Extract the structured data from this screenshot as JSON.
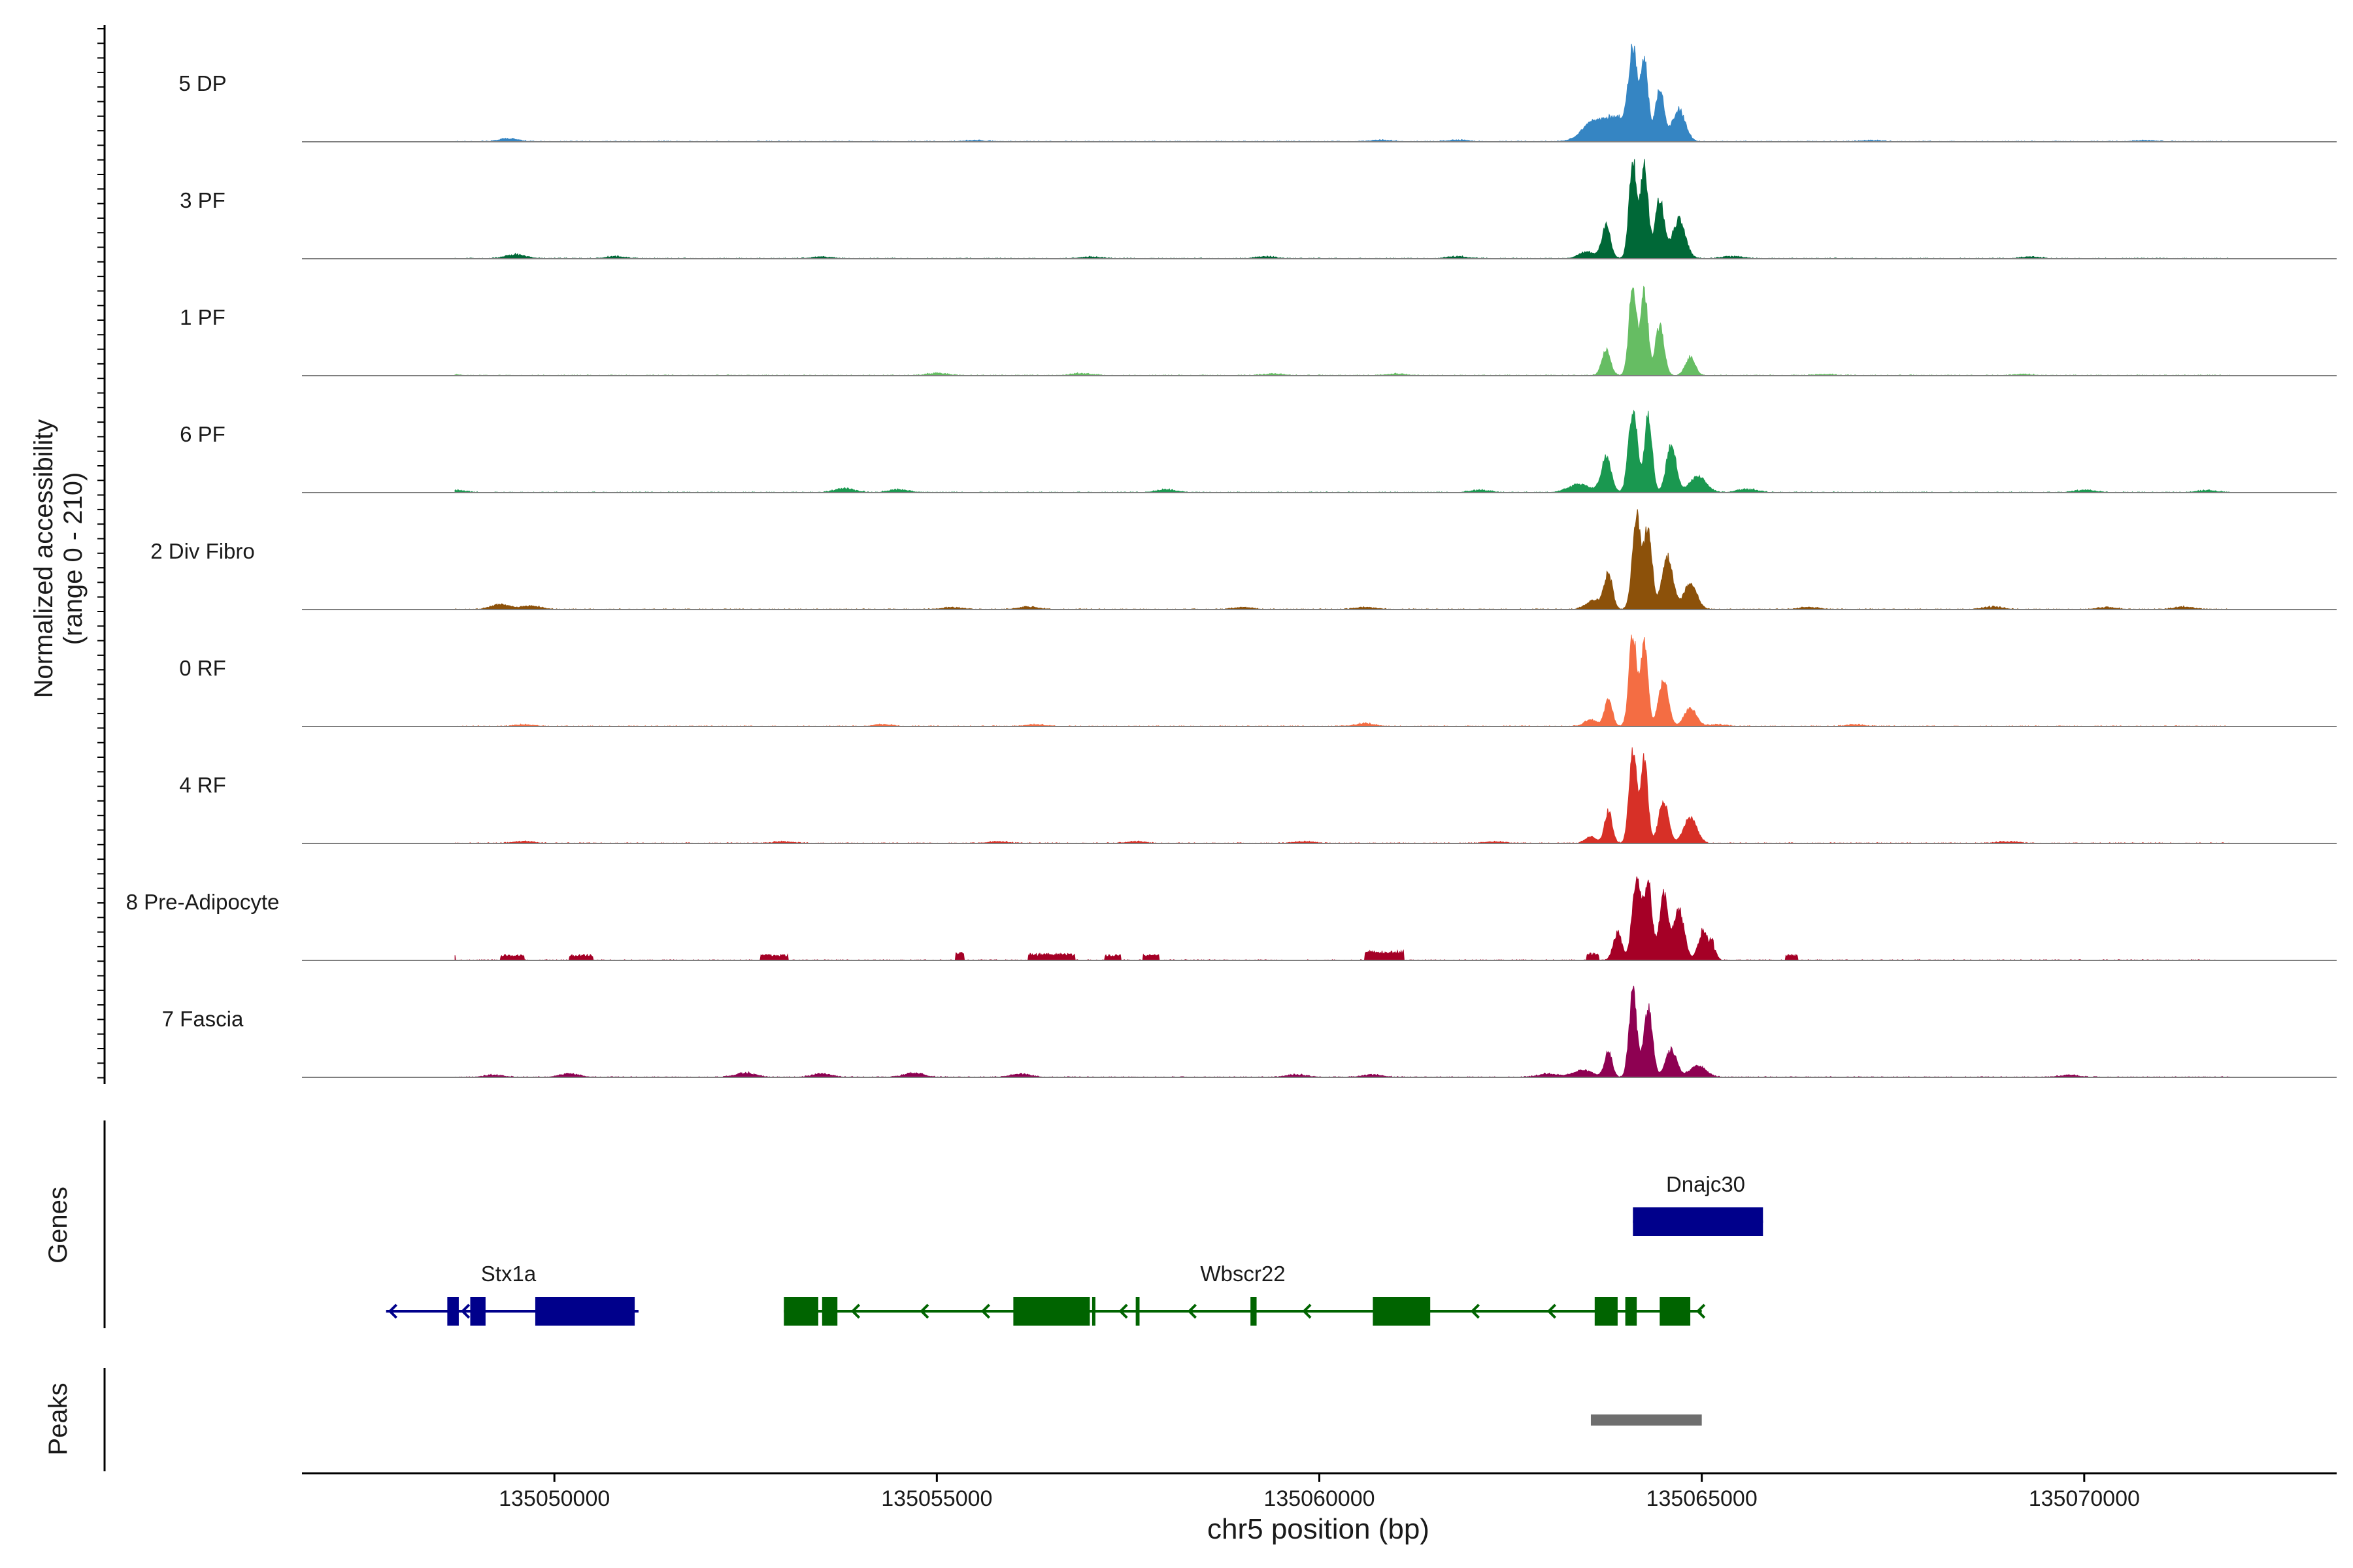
{
  "chart_data": {
    "type": "area",
    "title": "",
    "xlabel": "chr5 position (bp)",
    "ylabel_line1": "Normalized accessibility",
    "ylabel_line2": "(range 0 - 210)",
    "x_range": [
      135046700,
      135073300
    ],
    "y_range": [
      0,
      210
    ],
    "x_ticks": [
      {
        "value": 135050000,
        "label": "135050000"
      },
      {
        "value": 135055000,
        "label": "135055000"
      },
      {
        "value": 135060000,
        "label": "135060000"
      },
      {
        "value": 135065000,
        "label": "135065000"
      },
      {
        "value": 135070000,
        "label": "135070000"
      }
    ],
    "track_label_genes": "Genes",
    "track_label_peaks": "Peaks",
    "series": [
      {
        "name": "5 DP",
        "color": "#3585c3",
        "peak_max": 200,
        "background": [
          [
            135049400,
            7
          ],
          [
            135055500,
            3
          ],
          [
            135060800,
            4
          ],
          [
            135061800,
            4
          ],
          [
            135067200,
            3
          ],
          [
            135070800,
            3
          ]
        ],
        "peaks": [
          [
            135063520,
            150,
            18
          ],
          [
            135063850,
            350,
            55
          ],
          [
            135064100,
            75,
            175
          ],
          [
            135064250,
            65,
            170
          ],
          [
            135064450,
            80,
            110
          ],
          [
            135064700,
            120,
            70
          ]
        ]
      },
      {
        "name": "3 PF",
        "color": "#006837",
        "peak_max": 240,
        "background": [
          [
            135049500,
            10
          ],
          [
            135050800,
            5
          ],
          [
            135053500,
            4
          ],
          [
            135057000,
            4
          ],
          [
            135059300,
            5
          ],
          [
            135061800,
            5
          ],
          [
            135065400,
            6
          ],
          [
            135069300,
            4
          ]
        ],
        "peaks": [
          [
            135063750,
            80,
            70
          ],
          [
            135064100,
            70,
            210
          ],
          [
            135064250,
            70,
            200
          ],
          [
            135064450,
            80,
            130
          ],
          [
            135064700,
            120,
            85
          ],
          [
            135063500,
            150,
            15
          ]
        ]
      },
      {
        "name": "1 PF",
        "color": "#66bd63",
        "peak_max": 220,
        "background": [
          [
            135048600,
            3
          ],
          [
            135055000,
            6
          ],
          [
            135056900,
            5
          ],
          [
            135059400,
            4
          ],
          [
            135061000,
            4
          ],
          [
            135066600,
            3
          ],
          [
            135069200,
            3
          ]
        ],
        "peaks": [
          [
            135063750,
            80,
            55
          ],
          [
            135064100,
            70,
            200
          ],
          [
            135064250,
            65,
            185
          ],
          [
            135064450,
            80,
            110
          ],
          [
            135064850,
            90,
            40
          ]
        ]
      },
      {
        "name": "6 PF",
        "color": "#1a9850",
        "peak_max": 200,
        "background": [
          [
            135048100,
            6
          ],
          [
            135048700,
            5
          ],
          [
            135053800,
            10
          ],
          [
            135054500,
            7
          ],
          [
            135058000,
            7
          ],
          [
            135062100,
            6
          ],
          [
            135065600,
            8
          ],
          [
            135070000,
            6
          ],
          [
            135071600,
            5
          ]
        ],
        "peaks": [
          [
            135063400,
            200,
            18
          ],
          [
            135063750,
            90,
            75
          ],
          [
            135064100,
            80,
            185
          ],
          [
            135064300,
            70,
            165
          ],
          [
            135064600,
            90,
            105
          ],
          [
            135064950,
            150,
            35
          ]
        ]
      },
      {
        "name": "2 Div Fibro",
        "color": "#8c510a",
        "peak_max": 220,
        "background": [
          [
            135049300,
            12
          ],
          [
            135049700,
            8
          ],
          [
            135055200,
            5
          ],
          [
            135056200,
            6
          ],
          [
            135059000,
            5
          ],
          [
            135060600,
            5
          ],
          [
            135066400,
            5
          ],
          [
            135068800,
            6
          ],
          [
            135070300,
            5
          ],
          [
            135071300,
            6
          ]
        ],
        "peaks": [
          [
            135063600,
            150,
            20
          ],
          [
            135063780,
            75,
            75
          ],
          [
            135064150,
            80,
            200
          ],
          [
            135064300,
            70,
            175
          ],
          [
            135064550,
            100,
            115
          ],
          [
            135064850,
            120,
            55
          ]
        ]
      },
      {
        "name": "0 RF",
        "color": "#f46d43",
        "peak_max": 215,
        "background": [
          [
            135049600,
            4
          ],
          [
            135054300,
            4
          ],
          [
            135056300,
            4
          ],
          [
            135060600,
            7
          ],
          [
            135065200,
            4
          ],
          [
            135067000,
            4
          ]
        ],
        "peaks": [
          [
            135063550,
            120,
            14
          ],
          [
            135063780,
            70,
            60
          ],
          [
            135064100,
            70,
            200
          ],
          [
            135064250,
            65,
            185
          ],
          [
            135064500,
            90,
            100
          ],
          [
            135064850,
            110,
            40
          ]
        ]
      },
      {
        "name": "4 RF",
        "color": "#d73027",
        "peak_max": 220,
        "background": [
          [
            135049600,
            5
          ],
          [
            135053000,
            4
          ],
          [
            135055800,
            4
          ],
          [
            135057600,
            4
          ],
          [
            135059800,
            4
          ],
          [
            135062300,
            4
          ],
          [
            135069000,
            4
          ]
        ],
        "peaks": [
          [
            135063550,
            100,
            14
          ],
          [
            135063780,
            70,
            70
          ],
          [
            135064100,
            70,
            200
          ],
          [
            135064250,
            65,
            180
          ],
          [
            135064500,
            90,
            90
          ],
          [
            135064850,
            120,
            55
          ]
        ]
      },
      {
        "name": "8 Pre-Adipocyte",
        "color": "#a50026",
        "peak_max": 245,
        "background": [],
        "blocks": [
          [
            135048000,
            135048200,
            12
          ],
          [
            135048500,
            135048700,
            12
          ],
          [
            135049300,
            135049600,
            12
          ],
          [
            135050200,
            135050500,
            12
          ],
          [
            135052700,
            135053050,
            12
          ],
          [
            135055250,
            135055350,
            18
          ],
          [
            135056200,
            135056800,
            14
          ],
          [
            135057200,
            135057400,
            12
          ],
          [
            135057700,
            135057900,
            12
          ],
          [
            135060600,
            135061100,
            20
          ],
          [
            135063500,
            135063650,
            15
          ],
          [
            135065000,
            135065150,
            25
          ],
          [
            135066100,
            135066250,
            12
          ]
        ],
        "peaks": [
          [
            135063900,
            80,
            60
          ],
          [
            135064150,
            80,
            190
          ],
          [
            135064300,
            70,
            170
          ],
          [
            135064500,
            80,
            140
          ],
          [
            135064700,
            100,
            110
          ],
          [
            135065000,
            80,
            50
          ],
          [
            135065150,
            60,
            25
          ]
        ]
      },
      {
        "name": "7 Fascia",
        "color": "#8e0152",
        "peak_max": 200,
        "background": [
          [
            135049200,
            5
          ],
          [
            135050200,
            8
          ],
          [
            135052500,
            10
          ],
          [
            135053500,
            8
          ],
          [
            135054700,
            10
          ],
          [
            135056100,
            8
          ],
          [
            135059700,
            6
          ],
          [
            135060700,
            6
          ],
          [
            135063000,
            8
          ],
          [
            135069800,
            5
          ]
        ],
        "peaks": [
          [
            135063450,
            180,
            15
          ],
          [
            135063780,
            70,
            55
          ],
          [
            135064100,
            70,
            185
          ],
          [
            135064300,
            80,
            150
          ],
          [
            135064600,
            100,
            60
          ],
          [
            135064950,
            150,
            25
          ]
        ]
      }
    ],
    "genes": [
      {
        "name": "Stx1a",
        "color": "#00008b",
        "start": 135047800,
        "end": 135051100,
        "strand": "-",
        "row": 1,
        "label_pos": 135049400,
        "exons": [
          [
            135048600,
            135048750
          ],
          [
            135048900,
            135049100
          ],
          [
            135049750,
            135051050
          ]
        ],
        "arrows": [
          135047850,
          135048800
        ]
      },
      {
        "name": "Wbscr22",
        "color": "#006400",
        "start": 135053000,
        "end": 135065000,
        "strand": "-",
        "row": 1,
        "label_pos": 135059000,
        "exons": [
          [
            135053000,
            135053450
          ],
          [
            135053500,
            135053700
          ],
          [
            135056000,
            135057000
          ],
          [
            135057030,
            135057070
          ],
          [
            135057600,
            135057650
          ],
          [
            135059100,
            135059180
          ],
          [
            135060700,
            135061450
          ],
          [
            135063600,
            135063900
          ],
          [
            135064000,
            135064150
          ],
          [
            135064450,
            135064850
          ]
        ],
        "arrows": [
          135053900,
          135054800,
          135055600,
          135057400,
          135058300,
          135059800,
          135062000,
          135063000,
          135064950
        ]
      },
      {
        "name": "Dnajc30",
        "color": "#00008b",
        "start": 135064100,
        "end": 135065800,
        "strand": "-",
        "row": 0,
        "label_pos": 135065050,
        "exons": [
          [
            135064100,
            135065800
          ]
        ],
        "arrows": [
          135064150
        ]
      }
    ],
    "peaks_track": [
      {
        "start": 135063550,
        "end": 135065000,
        "color": "#6e6e6e"
      }
    ]
  }
}
